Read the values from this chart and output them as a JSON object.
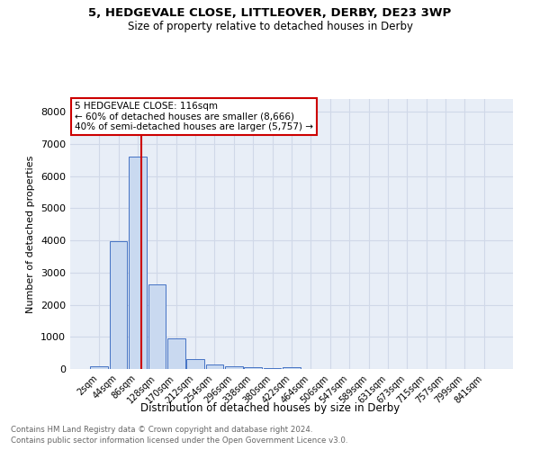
{
  "title1": "5, HEDGEVALE CLOSE, LITTLEOVER, DERBY, DE23 3WP",
  "title2": "Size of property relative to detached houses in Derby",
  "xlabel": "Distribution of detached houses by size in Derby",
  "ylabel": "Number of detached properties",
  "bar_labels": [
    "2sqm",
    "44sqm",
    "86sqm",
    "128sqm",
    "170sqm",
    "212sqm",
    "254sqm",
    "296sqm",
    "338sqm",
    "380sqm",
    "422sqm",
    "464sqm",
    "506sqm",
    "547sqm",
    "589sqm",
    "631sqm",
    "673sqm",
    "715sqm",
    "757sqm",
    "799sqm",
    "841sqm"
  ],
  "bar_values": [
    80,
    3980,
    6600,
    2620,
    960,
    310,
    130,
    85,
    55,
    40,
    55,
    0,
    0,
    0,
    0,
    0,
    0,
    0,
    0,
    0,
    0
  ],
  "bar_color": "#c9d9f0",
  "bar_edge_color": "#4472c4",
  "grid_color": "#d0d8e8",
  "bg_color": "#e8eef7",
  "vline_color": "#cc0000",
  "annotation_title": "5 HEDGEVALE CLOSE: 116sqm",
  "annotation_line1": "← 60% of detached houses are smaller (8,666)",
  "annotation_line2": "40% of semi-detached houses are larger (5,757) →",
  "annotation_box_color": "#cc0000",
  "annotation_bg": "#ffffff",
  "ylim": [
    0,
    8400
  ],
  "yticks": [
    0,
    1000,
    2000,
    3000,
    4000,
    5000,
    6000,
    7000,
    8000
  ],
  "footnote_line1": "Contains HM Land Registry data © Crown copyright and database right 2024.",
  "footnote_line2": "Contains public sector information licensed under the Open Government Licence v3.0."
}
